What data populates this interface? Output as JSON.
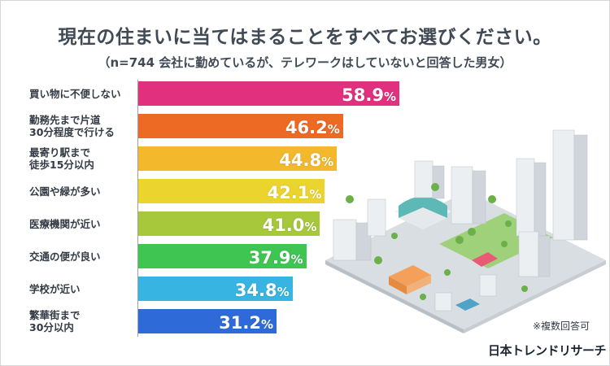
{
  "header": {
    "title": "現在の住まいに当てはまることをすべてお選びください。",
    "subtitle": "（n=744 会社に勤めているが、テレワークはしていないと回答した男女）"
  },
  "note": "※複数回答可",
  "brand": "日本トレンドリサーチ",
  "chart_data": {
    "type": "bar",
    "orientation": "horizontal",
    "title": "現在の住まいに当てはまることをすべてお選びください。",
    "subtitle": "（n=744 会社に勤めているが、テレワークはしていないと回答した男女）",
    "categories": [
      "買い物に不便しない",
      "勤務先まで片道\n30分程度で行ける",
      "最寄り駅まで\n徒歩15分以内",
      "公園や緑が多い",
      "医療機関が近い",
      "交通の便が良い",
      "学校が近い",
      "繁華街まで\n30分以内"
    ],
    "values": [
      58.9,
      46.2,
      44.8,
      42.1,
      41.0,
      37.9,
      34.8,
      31.2
    ],
    "value_labels": [
      "58.9",
      "46.2",
      "44.8",
      "42.1",
      "41.0",
      "37.9",
      "34.8",
      "31.2"
    ],
    "unit": "%",
    "colors": [
      "#e0307e",
      "#ed6a24",
      "#f4b82d",
      "#ecd42e",
      "#a6c83a",
      "#3fc552",
      "#38b4e2",
      "#2f6bd8"
    ],
    "xlim": [
      0,
      100
    ],
    "grid": false,
    "legend": "none"
  }
}
